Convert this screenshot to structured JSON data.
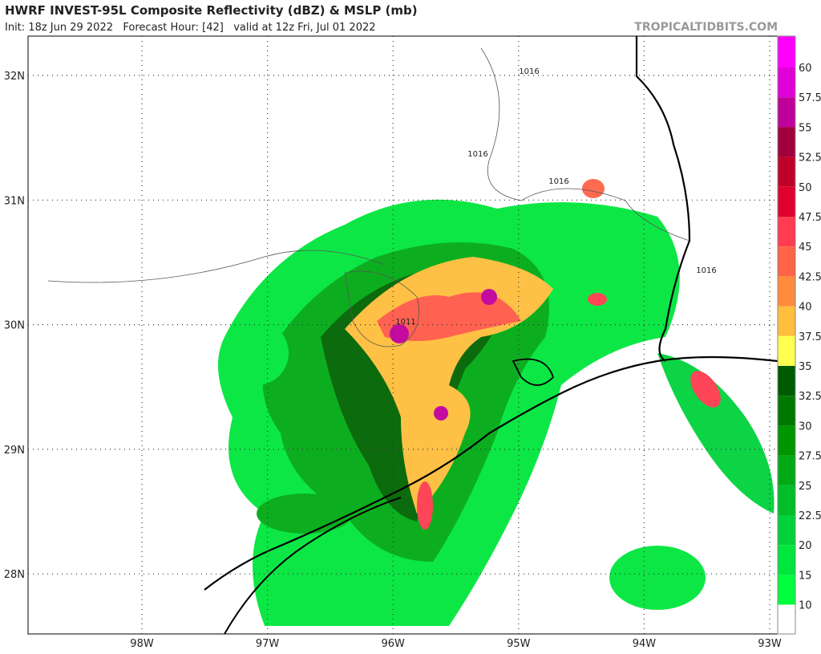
{
  "header": {
    "title": "HWRF INVEST-95L Composite Reflectivity (dBZ) & MSLP (mb)",
    "subtitle": "Init: 18z Jun 29 2022   Forecast Hour: [42]   valid at 12z Fri, Jul 01 2022",
    "source": "TROPICALTIDBITS.COM"
  },
  "map": {
    "latitudes": [
      "32N",
      "31N",
      "30N",
      "29N",
      "28N"
    ],
    "longitudes": [
      "98W",
      "97W",
      "96W",
      "95W",
      "94W",
      "93W"
    ],
    "contour_labels": [
      "1016",
      "1016",
      "1016",
      "1016",
      "1011"
    ]
  },
  "colorbar": {
    "labels": [
      "60",
      "57.5",
      "55",
      "52.5",
      "50",
      "47.5",
      "45",
      "42.5",
      "40",
      "37.5",
      "35",
      "32.5",
      "30",
      "27.5",
      "25",
      "22.5",
      "20",
      "15",
      "10"
    ],
    "colors": [
      "#ff00ff",
      "#e000d8",
      "#c0009a",
      "#a0003c",
      "#c00028",
      "#e00030",
      "#ff3c50",
      "#ff6448",
      "#ff8c3c",
      "#ffbe3c",
      "#ffff50",
      "#005a00",
      "#007800",
      "#009600",
      "#00aa14",
      "#00be28",
      "#00d23c",
      "#00e63c",
      "#00ff3c",
      "#ffffff"
    ]
  }
}
